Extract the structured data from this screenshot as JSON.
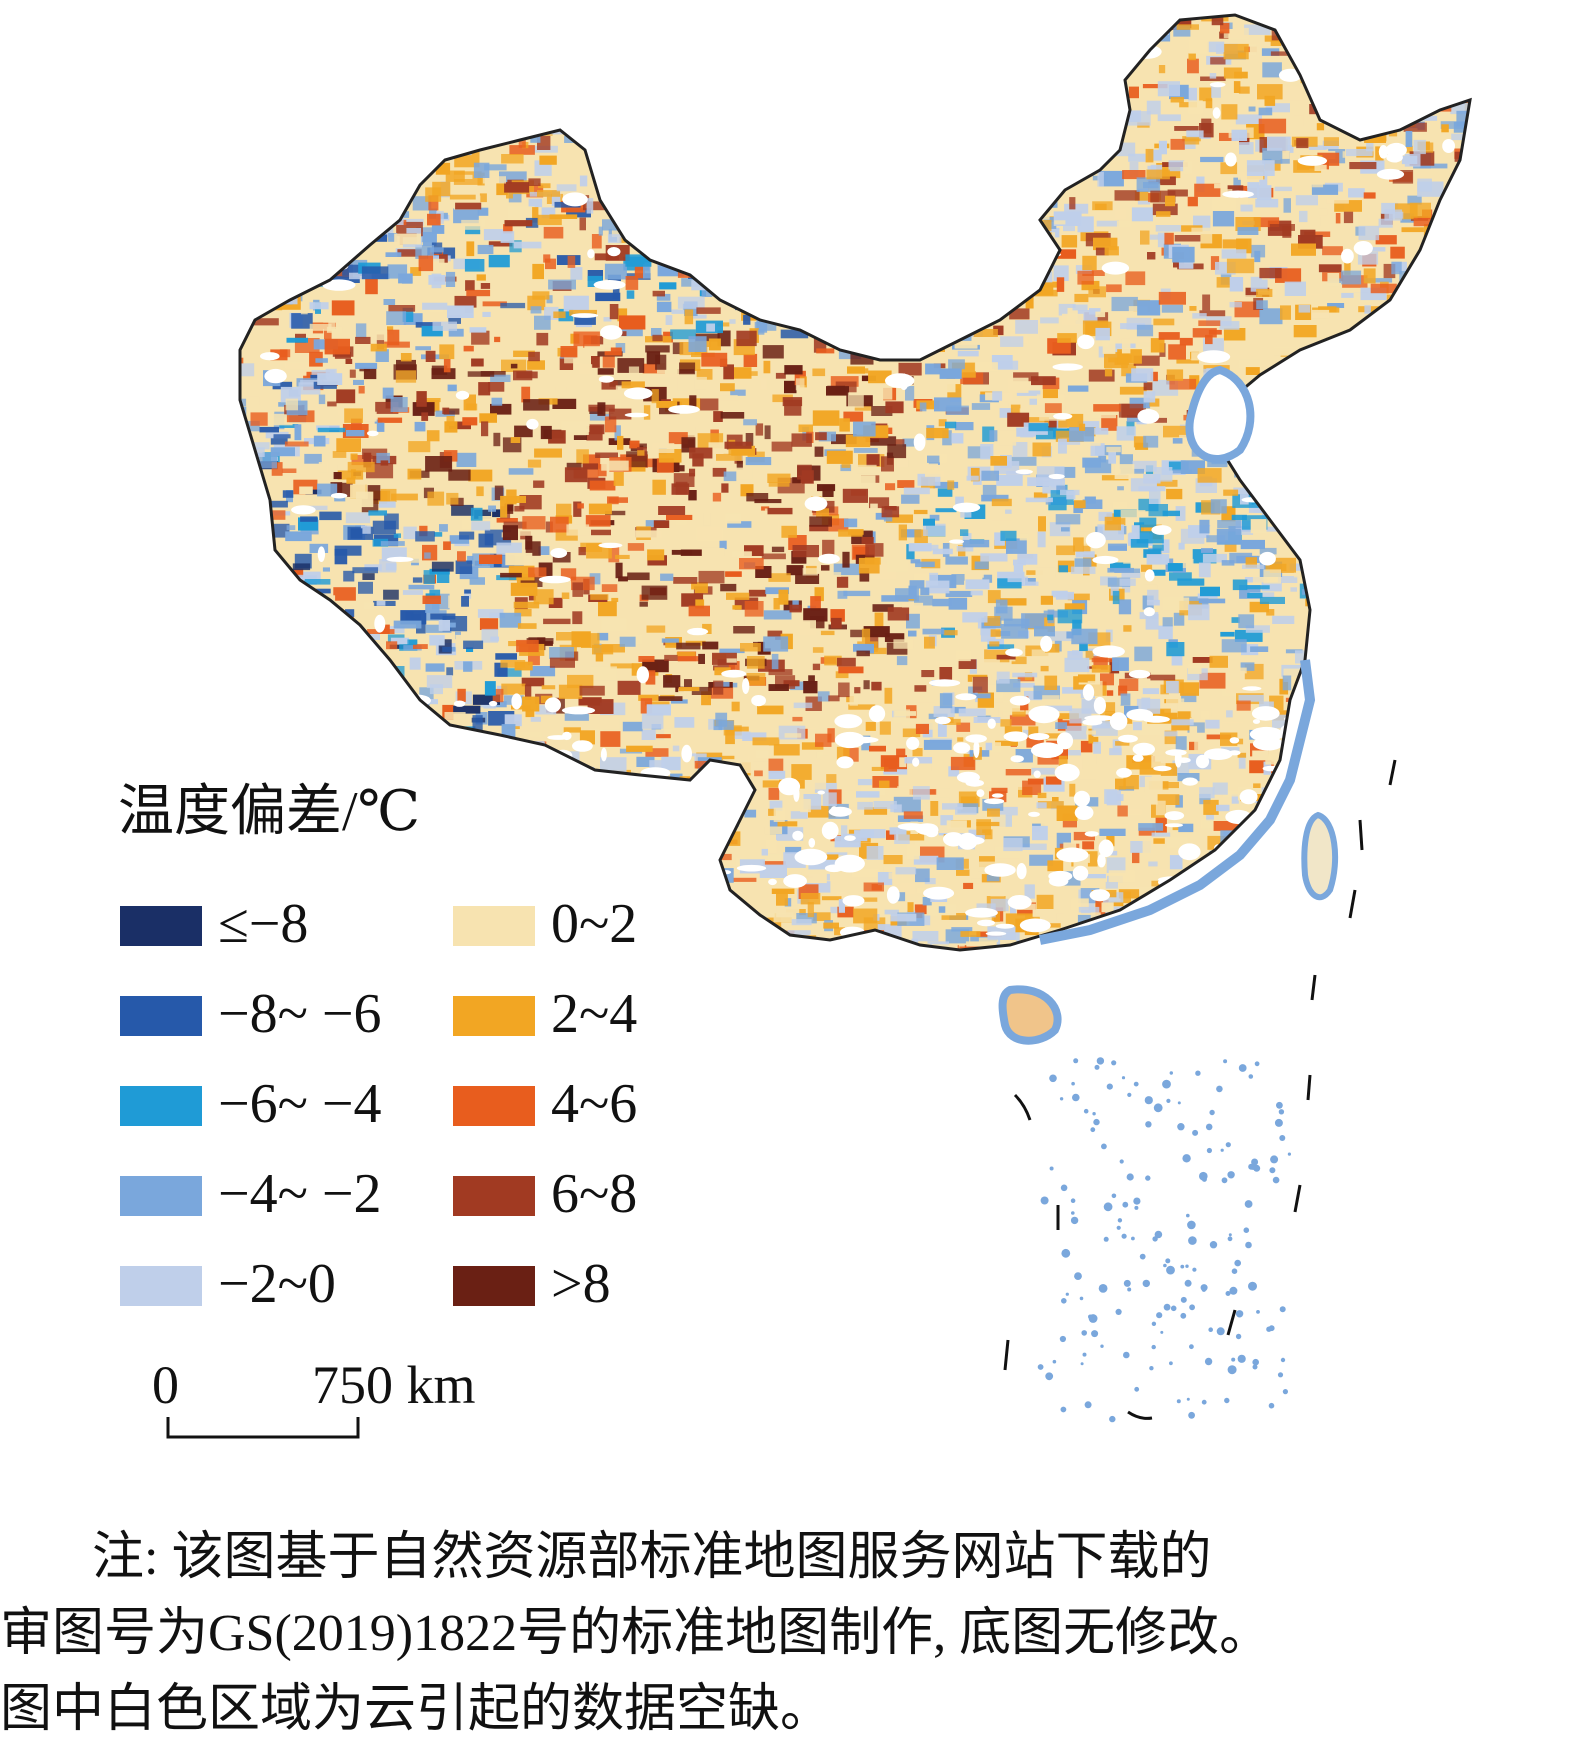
{
  "map": {
    "legend": {
      "title": "温度偏差/℃",
      "classes": [
        {
          "label": "≤−8",
          "color": "#1a2f66"
        },
        {
          "label": "−8~ −6",
          "color": "#2659aa"
        },
        {
          "label": "−6~ −4",
          "color": "#1f9bd6"
        },
        {
          "label": "−4~ −2",
          "color": "#7aa7dc"
        },
        {
          "label": "−2~0",
          "color": "#bfcfea"
        },
        {
          "label": "0~2",
          "color": "#f7e3b0"
        },
        {
          "label": "2~4",
          "color": "#f2a623"
        },
        {
          "label": "4~6",
          "color": "#e85d1e"
        },
        {
          "label": "6~8",
          "color": "#a13a22"
        },
        {
          "label": ">8",
          "color": "#6a2014"
        }
      ]
    },
    "scalebar": {
      "zero": "0",
      "end": "750 km"
    },
    "boundary_color": "#222222",
    "coast_color": "#7aa7dc"
  },
  "note": {
    "line1": "注: 该图基于自然资源部标准地图服务网站下载的",
    "line2": "审图号为GS(2019)1822号的标准地图制作, 底图无修改。",
    "line3": "图中白色区域为云引起的数据空缺。"
  }
}
